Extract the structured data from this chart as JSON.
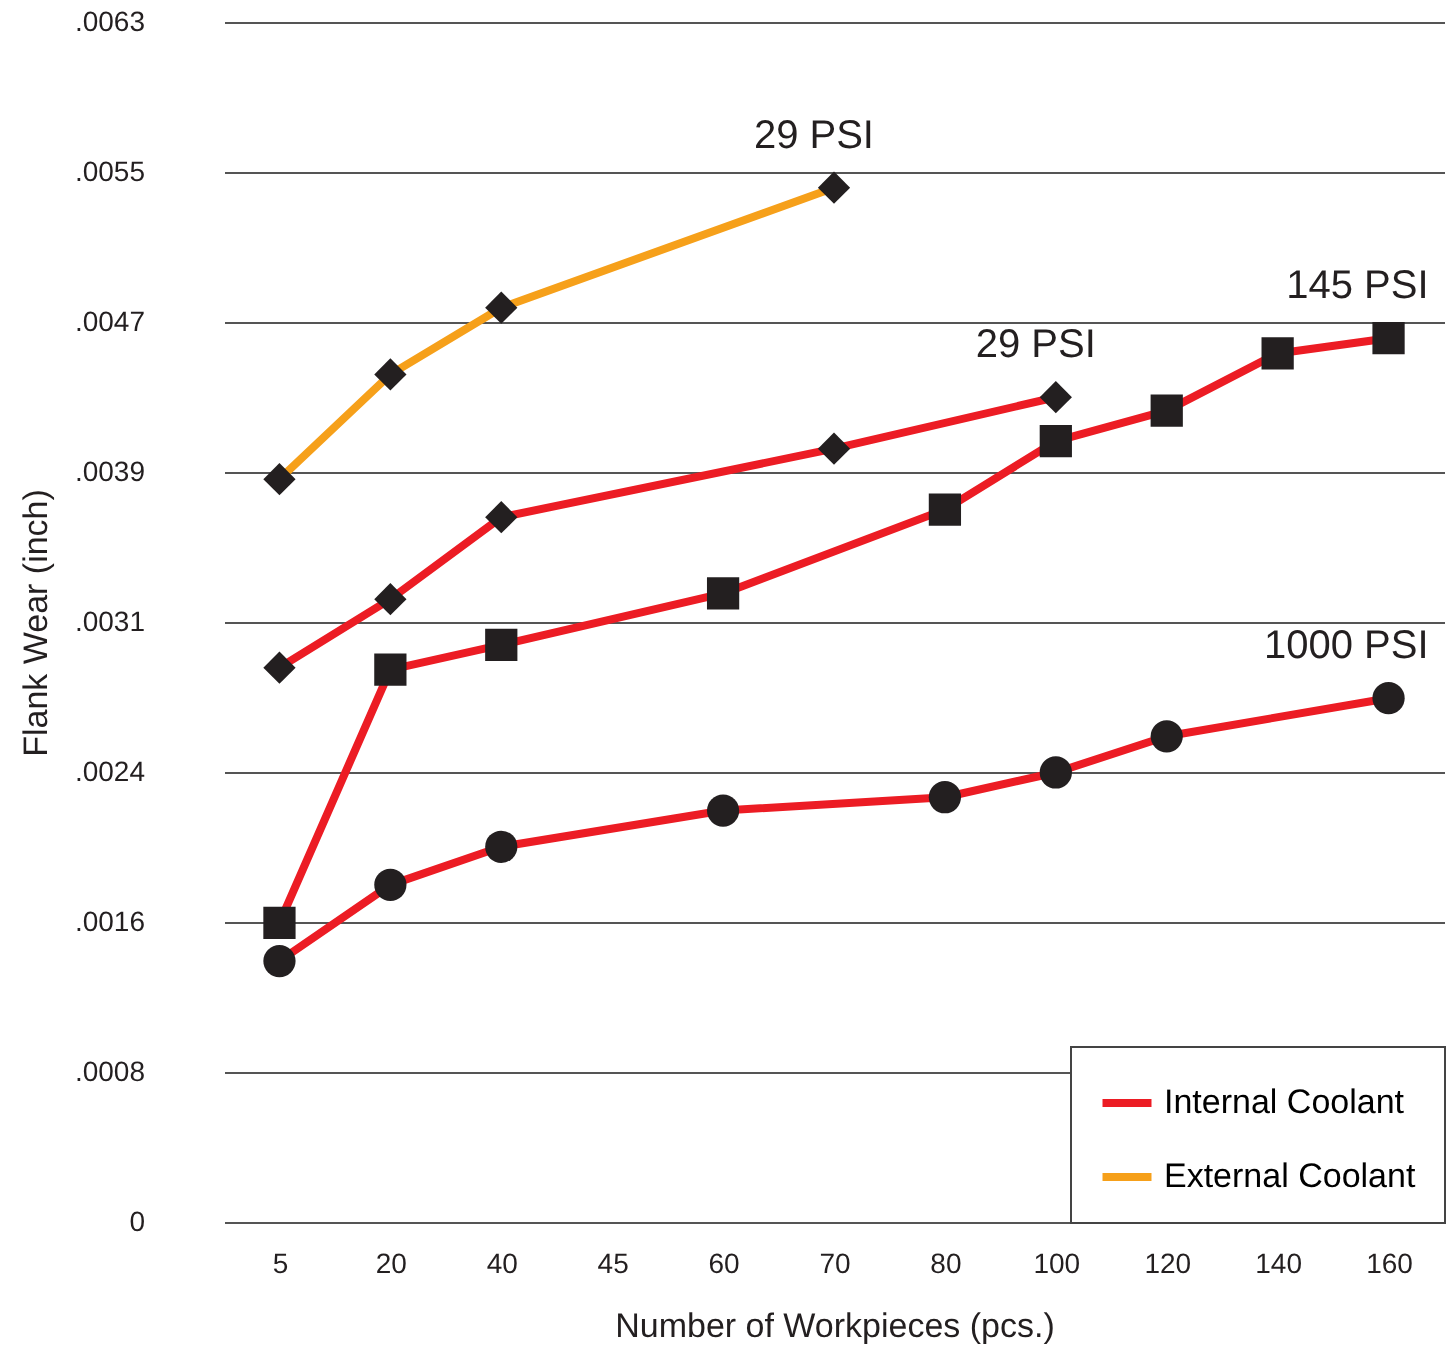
{
  "chart_data": {
    "type": "line",
    "xlabel": "Number of Workpieces (pcs.)",
    "ylabel": "Flank Wear (inch)",
    "categories": [
      "5",
      "20",
      "40",
      "45",
      "60",
      "70",
      "80",
      "100",
      "120",
      "140",
      "160"
    ],
    "ylim": [
      0,
      0.0063
    ],
    "yticks": [
      0,
      {
        "value": 0.0007875,
        "label": ".0008"
      },
      {
        "value": 0.001575,
        "label": ".0016"
      },
      {
        "value": 0.0023625,
        "label": ".0024"
      },
      {
        "value": 0.00315,
        "label": ".0031"
      },
      {
        "value": 0.0039375,
        "label": ".0039"
      },
      {
        "value": 0.004725,
        "label": ".0047"
      },
      {
        "value": 0.0055125,
        "label": ".0055"
      },
      {
        "value": 0.0063,
        "label": ".0063"
      }
    ],
    "grid": "y",
    "legend": "bottom right",
    "series": [
      {
        "name": "Internal Coolant",
        "color": "#ec1c24",
        "marker": "diamond",
        "x": [
          "5",
          "20",
          "40",
          "70",
          "100"
        ],
        "values": [
          0.00291,
          0.00327,
          0.0037,
          0.00406,
          0.00433
        ]
      },
      {
        "name": "External Coolant",
        "color": "#f6a01a",
        "marker": "diamond",
        "x": [
          "5",
          "20",
          "40",
          "70"
        ],
        "values": [
          0.0039,
          0.00445,
          0.0048,
          0.00543
        ]
      },
      {
        "color": "#ec1c24",
        "marker": "square",
        "x": [
          "5",
          "20",
          "40",
          "60",
          "80",
          "100",
          "120",
          "140",
          "160"
        ],
        "values": [
          0.00157,
          0.0029,
          0.00303,
          0.0033,
          0.00374,
          0.0041,
          0.00426,
          0.00456,
          0.00464
        ]
      },
      {
        "color": "#ec1c24",
        "marker": "circle",
        "x": [
          "5",
          "20",
          "40",
          "60",
          "80",
          "100",
          "120",
          "160"
        ],
        "values": [
          0.00137,
          0.00177,
          0.00197,
          0.00216,
          0.00223,
          0.00236,
          0.00255,
          0.00275
        ]
      }
    ],
    "annotations": [
      "29 PSI",
      "29 PSI",
      "145 PSI",
      "1000 PSI"
    ]
  }
}
